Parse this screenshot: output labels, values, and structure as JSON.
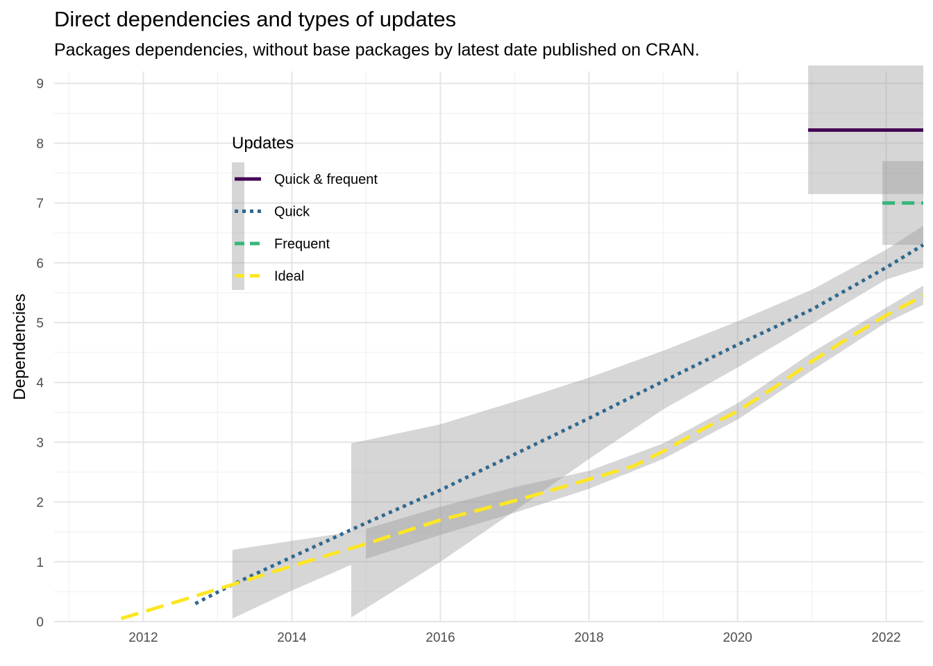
{
  "chart_data": {
    "type": "line",
    "title": "Direct dependencies and types of updates",
    "subtitle": "Packages dependencies, without base packages by latest date published on CRAN.",
    "xlabel": "",
    "ylabel": "Dependencies",
    "xlim": [
      2010.8,
      2022.5
    ],
    "ylim": [
      0,
      9.2
    ],
    "x_ticks": [
      2012,
      2014,
      2016,
      2018,
      2020,
      2022
    ],
    "y_ticks": [
      0,
      1,
      2,
      3,
      4,
      5,
      6,
      7,
      8,
      9
    ],
    "grid": true,
    "legend": {
      "title": "Updates",
      "position": "top-left",
      "entries": [
        "Quick & frequent",
        "Quick",
        "Frequent",
        "Ideal"
      ]
    },
    "series": [
      {
        "name": "Quick & frequent",
        "color": "#440154",
        "dash": "solid",
        "x": [
          2020.95,
          2022.5
        ],
        "y": [
          8.22,
          8.22
        ],
        "ribbon": {
          "x": [
            2020.95,
            2022.5
          ],
          "lower": [
            7.15,
            7.15
          ],
          "upper": [
            9.3,
            9.3
          ]
        }
      },
      {
        "name": "Quick",
        "color": "#31688E",
        "dash": "dotted",
        "x": [
          2012.7,
          2013.2,
          2014,
          2015,
          2016,
          2017,
          2018,
          2019,
          2020,
          2021,
          2022,
          2022.5
        ],
        "y": [
          0.3,
          0.62,
          1.08,
          1.65,
          2.2,
          2.8,
          3.4,
          4.02,
          4.63,
          5.22,
          5.92,
          6.3
        ],
        "ribbon": {
          "x": [
            2013.2,
            2014,
            2014.8,
            2014.8,
            2016,
            2017,
            2018,
            2019,
            2020,
            2021,
            2022,
            2022.5
          ],
          "lower": [
            0.05,
            0.52,
            0.95,
            0.07,
            1.0,
            1.85,
            2.72,
            3.55,
            4.25,
            4.98,
            5.72,
            5.92
          ],
          "upper": [
            1.2,
            1.35,
            1.5,
            2.98,
            3.3,
            3.68,
            4.08,
            4.53,
            5.02,
            5.55,
            6.22,
            6.62
          ]
        }
      },
      {
        "name": "Frequent",
        "color": "#35B779",
        "dash": "dashed",
        "x": [
          2021.95,
          2022.5
        ],
        "y": [
          7.0,
          7.0
        ],
        "ribbon": {
          "x": [
            2021.95,
            2022.5
          ],
          "lower": [
            6.3,
            6.3
          ],
          "upper": [
            7.7,
            7.7
          ]
        }
      },
      {
        "name": "Ideal",
        "color": "#FDE725",
        "dash": "longdash",
        "x": [
          2011.7,
          2012.5,
          2013.2,
          2014,
          2015,
          2016,
          2017,
          2018,
          2018.6,
          2019,
          2019.5,
          2020,
          2020.5,
          2021,
          2021.5,
          2022,
          2022.5
        ],
        "y": [
          0.05,
          0.35,
          0.62,
          0.93,
          1.3,
          1.7,
          2.02,
          2.38,
          2.6,
          2.85,
          3.2,
          3.52,
          3.92,
          4.35,
          4.75,
          5.12,
          5.45
        ],
        "ribbon": {
          "x": [
            2015,
            2016,
            2017,
            2018,
            2019,
            2020,
            2021,
            2022,
            2022.5
          ],
          "lower": [
            1.05,
            1.45,
            1.82,
            2.22,
            2.72,
            3.38,
            4.2,
            5.0,
            5.3
          ],
          "upper": [
            1.55,
            1.92,
            2.25,
            2.52,
            2.98,
            3.65,
            4.5,
            5.25,
            5.62
          ]
        }
      }
    ]
  }
}
